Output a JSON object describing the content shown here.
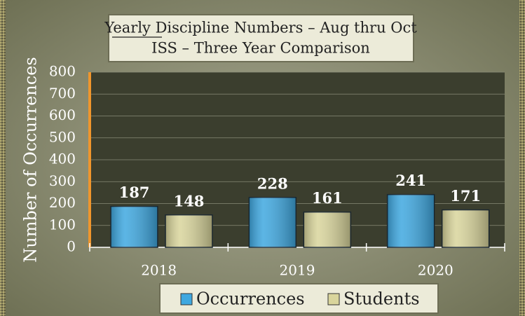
{
  "chart_data": {
    "type": "bar",
    "title": "Yearly Discipline Numbers – Aug thru Oct",
    "subtitle": "ISS – Three Year Comparison",
    "y_label": "Number of Occurrences",
    "categories": [
      "2018",
      "2019",
      "2020"
    ],
    "series": [
      {
        "name": "Occurrences",
        "color": "#3fa8e0",
        "values": [
          187,
          228,
          241
        ]
      },
      {
        "name": "Students",
        "color": "#d9d59c",
        "values": [
          148,
          161,
          171
        ]
      }
    ],
    "ylim": [
      0,
      800
    ],
    "yticks": [
      0,
      100,
      200,
      300,
      400,
      500,
      600,
      700,
      800
    ],
    "grid": true,
    "legend": "bottom"
  }
}
